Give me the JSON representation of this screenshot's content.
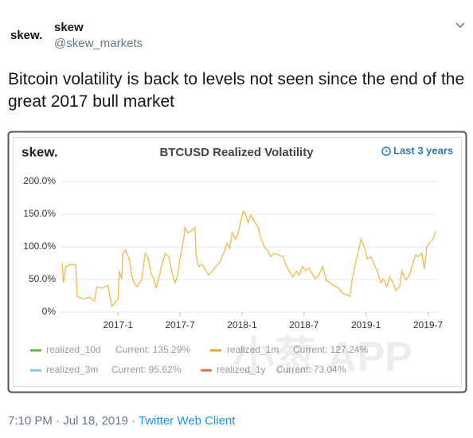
{
  "tweet": {
    "logo": "skew.",
    "name": "skew",
    "handle": "@skew_markets",
    "text": "Bitcoin volatility is back to levels not seen since the end of the great 2017 bull market",
    "timestamp": "7:10 PM · Jul 18, 2019 ·",
    "source": "Twitter Web Client"
  },
  "chart_data": {
    "type": "line",
    "logo": "skew.",
    "title": "BTCUSD Realized Volatility",
    "range_button": "Last 3 years",
    "watermark": "小葱 APP",
    "xlim": [
      2016.53,
      2019.58
    ],
    "ylim": [
      0,
      200
    ],
    "xticks": [
      {
        "value": 2017,
        "label": "2017-1"
      },
      {
        "value": 2017.5,
        "label": "2017-7"
      },
      {
        "value": 2018,
        "label": "2018-1"
      },
      {
        "value": 2018.5,
        "label": "2018-7"
      },
      {
        "value": 2019,
        "label": "2019-1"
      },
      {
        "value": 2019.5,
        "label": "2019-7"
      }
    ],
    "yticks": [
      {
        "value": 0,
        "label": "0%"
      },
      {
        "value": 50,
        "label": "50.0%"
      },
      {
        "value": 100,
        "label": "100.0%"
      },
      {
        "value": 150,
        "label": "150.0%"
      },
      {
        "value": 200,
        "label": "200.0%"
      }
    ],
    "grid": true,
    "x": [
      2016.55,
      2016.56,
      2016.58,
      2016.62,
      2016.66,
      2016.67,
      2016.72,
      2016.77,
      2016.81,
      2016.83,
      2016.87,
      2016.92,
      2016.95,
      2016.98,
      2017.0,
      2017.01,
      2017.03,
      2017.04,
      2017.06,
      2017.09,
      2017.11,
      2017.13,
      2017.15,
      2017.19,
      2017.22,
      2017.24,
      2017.27,
      2017.29,
      2017.31,
      2017.35,
      2017.38,
      2017.41,
      2017.44,
      2017.46,
      2017.48,
      2017.5,
      2017.53,
      2017.54,
      2017.56,
      2017.59,
      2017.62,
      2017.63,
      2017.65,
      2017.68,
      2017.71,
      2017.73,
      2017.76,
      2017.79,
      2017.82,
      2017.85,
      2017.88,
      2017.9,
      2017.92,
      2017.95,
      2017.97,
      2017.99,
      2018.01,
      2018.03,
      2018.05,
      2018.07,
      2018.1,
      2018.13,
      2018.15,
      2018.18,
      2018.21,
      2018.23,
      2018.26,
      2018.29,
      2018.33,
      2018.36,
      2018.38,
      2018.41,
      2018.44,
      2018.46,
      2018.49,
      2018.51,
      2018.54,
      2018.56,
      2018.59,
      2018.62,
      2018.65,
      2018.68,
      2018.71,
      2018.74,
      2018.78,
      2018.81,
      2018.84,
      2018.87,
      2018.89,
      2018.91,
      2018.94,
      2018.96,
      2018.99,
      2019.01,
      2019.04,
      2019.06,
      2019.09,
      2019.12,
      2019.14,
      2019.17,
      2019.19,
      2019.22,
      2019.24,
      2019.27,
      2019.29,
      2019.32,
      2019.35,
      2019.37,
      2019.4,
      2019.42,
      2019.45,
      2019.47,
      2019.49,
      2019.51,
      2019.54,
      2019.56
    ],
    "series": [
      {
        "name": "realized_1m",
        "color": "#efb84c",
        "values": [
          75,
          45,
          70,
          73,
          72,
          24,
          20,
          23,
          17,
          39,
          37,
          41,
          9,
          15,
          21,
          63,
          51,
          90,
          95,
          82,
          57,
          45,
          39,
          49,
          90,
          85,
          57,
          51,
          37,
          70,
          90,
          85,
          57,
          45,
          57,
          82,
          112,
          130,
          122,
          124,
          130,
          88,
          70,
          73,
          63,
          57,
          63,
          70,
          76,
          90,
          106,
          98,
          122,
          112,
          122,
          139,
          155,
          149,
          137,
          149,
          139,
          130,
          115,
          100,
          94,
          85,
          90,
          88,
          85,
          70,
          63,
          54,
          63,
          57,
          70,
          63,
          68,
          61,
          51,
          57,
          70,
          49,
          45,
          41,
          37,
          29,
          27,
          24,
          51,
          70,
          94,
          112,
          98,
          82,
          85,
          76,
          63,
          45,
          51,
          39,
          54,
          45,
          33,
          39,
          63,
          49,
          57,
          70,
          88,
          85,
          90,
          66,
          100,
          106,
          112,
          124
        ]
      }
    ],
    "legend": [
      {
        "name": "realized_10d",
        "current": "Current: 135.29%",
        "color": "#6ab04c"
      },
      {
        "name": "realized_1m",
        "current": "Current: 127.24%",
        "color": "#e8a838"
      },
      {
        "name": "realized_3m",
        "current": "Current: 95.62%",
        "color": "#7ec8e3"
      },
      {
        "name": "realized_1y",
        "current": "Current: 73.04%",
        "color": "#e0703a"
      }
    ]
  }
}
